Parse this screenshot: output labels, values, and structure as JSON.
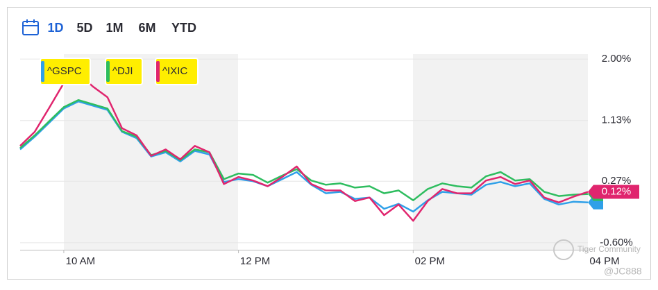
{
  "ranges": [
    "1D",
    "5D",
    "1M",
    "6M",
    "YTD"
  ],
  "active_range": 0,
  "chart_data": {
    "type": "line",
    "x": [
      570,
      580,
      590,
      600,
      610,
      620,
      630,
      640,
      650,
      660,
      670,
      680,
      690,
      700,
      710,
      720,
      730,
      740,
      750,
      760,
      770,
      780,
      790,
      800,
      810,
      820,
      830,
      840,
      850,
      860,
      870,
      880,
      890,
      900,
      910,
      920,
      930,
      940,
      950,
      960
    ],
    "xlim": [
      570,
      960
    ],
    "xticks": [
      {
        "value": 600,
        "label": "10 AM"
      },
      {
        "value": 720,
        "label": "12 PM"
      },
      {
        "value": 840,
        "label": "02 PM"
      },
      {
        "value": 960,
        "label": "04 PM"
      }
    ],
    "ylim": [
      -0.7,
      2.07
    ],
    "yticks": [
      {
        "value": 2.0,
        "label": "2.00%"
      },
      {
        "value": 1.13,
        "label": "1.13%"
      },
      {
        "value": 0.27,
        "label": "0.27%"
      },
      {
        "value": -0.6,
        "label": "-0.60%"
      }
    ],
    "grid": true,
    "series": [
      {
        "name": "^GSPC",
        "color": "#2fa0e8",
        "values": [
          0.72,
          0.9,
          1.1,
          1.3,
          1.4,
          1.34,
          1.28,
          0.97,
          0.88,
          0.62,
          0.68,
          0.55,
          0.7,
          0.65,
          0.26,
          0.3,
          0.27,
          0.2,
          0.3,
          0.4,
          0.22,
          0.1,
          0.12,
          0.02,
          0.04,
          -0.12,
          -0.05,
          -0.16,
          0.0,
          0.12,
          0.1,
          0.08,
          0.22,
          0.26,
          0.2,
          0.24,
          0.02,
          -0.06,
          -0.02,
          -0.03
        ]
      },
      {
        "name": "^DJI",
        "color": "#2ebd5f",
        "values": [
          0.74,
          0.92,
          1.12,
          1.32,
          1.42,
          1.36,
          1.3,
          0.98,
          0.9,
          0.64,
          0.7,
          0.57,
          0.72,
          0.68,
          0.3,
          0.38,
          0.36,
          0.25,
          0.35,
          0.44,
          0.28,
          0.22,
          0.24,
          0.18,
          0.2,
          0.1,
          0.14,
          0.0,
          0.16,
          0.24,
          0.2,
          0.18,
          0.34,
          0.4,
          0.28,
          0.3,
          0.12,
          0.06,
          0.08,
          0.09
        ]
      },
      {
        "name": "^IXIC",
        "color": "#e0256e",
        "values": [
          0.77,
          0.97,
          1.31,
          1.66,
          1.8,
          1.61,
          1.46,
          1.02,
          0.92,
          0.63,
          0.72,
          0.58,
          0.77,
          0.68,
          0.23,
          0.33,
          0.28,
          0.2,
          0.33,
          0.48,
          0.23,
          0.14,
          0.14,
          -0.01,
          0.04,
          -0.21,
          -0.06,
          -0.29,
          -0.01,
          0.16,
          0.1,
          0.1,
          0.28,
          0.33,
          0.23,
          0.28,
          0.04,
          -0.03,
          0.05,
          0.12
        ],
        "last_label": "0.12%"
      }
    ]
  },
  "watermark": {
    "text": "Tiger Community",
    "handle": "@JC888"
  }
}
